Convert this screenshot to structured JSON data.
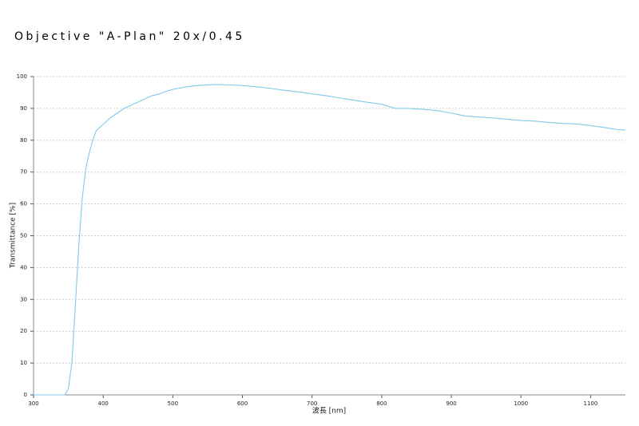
{
  "chart_data": {
    "type": "line",
    "title": "Objective \"A-Plan\" 20x/0.45",
    "x_label": "波長 [nm]",
    "y_label": "Transmittance [%]",
    "x": [
      300,
      340,
      345,
      350,
      355,
      360,
      365,
      370,
      375,
      380,
      385,
      390,
      400,
      410,
      420,
      430,
      440,
      450,
      460,
      470,
      480,
      490,
      500,
      520,
      540,
      560,
      580,
      600,
      620,
      640,
      660,
      680,
      700,
      720,
      740,
      760,
      780,
      800,
      820,
      840,
      860,
      880,
      900,
      920,
      940,
      960,
      980,
      1000,
      1020,
      1040,
      1060,
      1080,
      1100,
      1120,
      1140,
      1150
    ],
    "series": [
      {
        "name": "Transmittance",
        "color": "#7fcbe8",
        "values": [
          0,
          0,
          0,
          2,
          10,
          28,
          47,
          62,
          71,
          76,
          80,
          83,
          85,
          87,
          88.5,
          90,
          91,
          92,
          93,
          94,
          94.5,
          95.3,
          96,
          96.8,
          97.3,
          97.5,
          97.4,
          97.2,
          96.8,
          96.3,
          95.7,
          95.2,
          94.6,
          94,
          93.3,
          92.6,
          91.9,
          91.3,
          90,
          90,
          89.7,
          89.3,
          88.5,
          87.6,
          87.3,
          87,
          86.6,
          86.2,
          86,
          85.6,
          85.3,
          85.1,
          84.6,
          84,
          83.3,
          83.2
        ]
      }
    ],
    "xlim": [
      300,
      1150
    ],
    "xticks": [
      300,
      400,
      500,
      600,
      700,
      800,
      900,
      1000,
      1100
    ],
    "ylim": [
      0,
      100
    ],
    "yticks": [
      0,
      10,
      20,
      30,
      40,
      50,
      60,
      70,
      80,
      90,
      100
    ],
    "grid": true
  }
}
